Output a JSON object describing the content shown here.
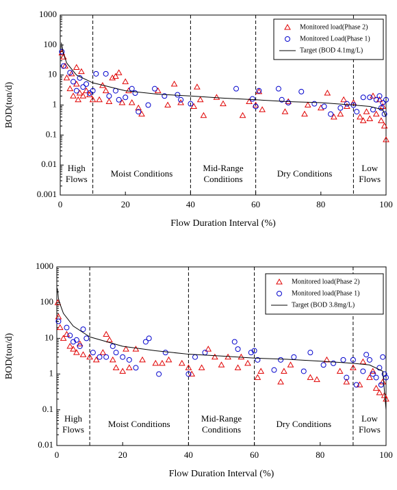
{
  "chart_data": [
    {
      "type": "scatter",
      "xlabel": "Flow Duration Interval (%)",
      "ylabel": "BOD(ton/d)",
      "xlim": [
        0,
        100
      ],
      "xticks": [
        0,
        20,
        40,
        60,
        80,
        100
      ],
      "ylim": [
        0.001,
        1000
      ],
      "yticks": [
        0.001,
        0.01,
        0.1,
        1,
        10,
        100,
        1000
      ],
      "log_scale": true,
      "legend": "upper right",
      "zone_boundaries": [
        10,
        40,
        60,
        90
      ],
      "zones": [
        {
          "label_lines": [
            "High",
            "Flows"
          ]
        },
        {
          "label_lines": [
            "Moist Conditions"
          ]
        },
        {
          "label_lines": [
            "Mid-Range",
            "Conditions"
          ]
        },
        {
          "label_lines": [
            "Dry Conditions"
          ]
        },
        {
          "label_lines": [
            "Low",
            "Flows"
          ]
        }
      ],
      "series": [
        {
          "name": "Monitored load(Phase 2)",
          "marker": "triangle",
          "color": "#e00000",
          "x": [
            0.5,
            1,
            1.5,
            2,
            3,
            3.5,
            4,
            5,
            5,
            5.5,
            6,
            6.5,
            7,
            8,
            9,
            10,
            12,
            13,
            14,
            15,
            16,
            17,
            18,
            19,
            20,
            21,
            22,
            24,
            25,
            30,
            33,
            35,
            37,
            41,
            42,
            43,
            44,
            48,
            50,
            56,
            58,
            60,
            61,
            62,
            69,
            70,
            75,
            76,
            80,
            82,
            84,
            86,
            87,
            88,
            90,
            92,
            93,
            94,
            95,
            96,
            97,
            98,
            98.5,
            99,
            99.5,
            100
          ],
          "values": [
            55,
            40,
            20,
            8,
            3.5,
            11,
            2,
            5,
            18,
            1.5,
            2.5,
            13,
            2,
            3,
            2.2,
            1.5,
            1.5,
            4.5,
            3,
            1.3,
            8,
            9,
            12,
            1.2,
            6,
            3,
            1.2,
            0.8,
            0.5,
            3,
            1,
            5,
            1.2,
            0.9,
            4,
            1.5,
            0.45,
            1.8,
            1.1,
            0.45,
            1.3,
            1,
            2.8,
            0.7,
            0.6,
            1.3,
            0.5,
            1,
            0.8,
            2.5,
            0.4,
            0.5,
            1.5,
            0.9,
            1.2,
            0.4,
            0.3,
            0.6,
            0.35,
            2,
            0.5,
            1.5,
            0.3,
            0.9,
            0.2,
            0.07
          ]
        },
        {
          "name": "Monitored Load(Phase 1)",
          "marker": "circle",
          "color": "#0000cc",
          "x": [
            0.5,
            1,
            3,
            4,
            5,
            6,
            7,
            8,
            9,
            10,
            11,
            14,
            15,
            17,
            18,
            20,
            22,
            23,
            24,
            27,
            29,
            32,
            36,
            37,
            40,
            54,
            59,
            60,
            61,
            67,
            68,
            70,
            74,
            78,
            81,
            83,
            86,
            88,
            90,
            91,
            93,
            95,
            96,
            97,
            98,
            98.5,
            99,
            99.5,
            100
          ],
          "values": [
            60,
            20,
            12,
            6,
            3,
            8,
            4,
            5,
            2.5,
            3,
            11,
            11,
            2,
            3,
            1.5,
            1.8,
            3.5,
            2.5,
            0.6,
            1,
            3.5,
            2,
            2.2,
            1.5,
            1.1,
            3.5,
            1.6,
            0.9,
            3,
            3.5,
            1.5,
            1.2,
            2.8,
            1.1,
            0.9,
            0.5,
            0.8,
            1.1,
            1,
            0.6,
            1.8,
            1.8,
            0.7,
            1.5,
            2,
            0.8,
            1.2,
            0.5,
            1.5
          ]
        },
        {
          "name": "Target (BOD 4.1mg/L)",
          "marker": "line",
          "color": "#000000",
          "x": [
            0.3,
            0.5,
            1,
            2,
            5,
            10,
            20,
            30,
            40,
            50,
            60,
            70,
            80,
            90,
            95,
            99,
            100
          ],
          "values": [
            120,
            100,
            50,
            25,
            10,
            5.5,
            3,
            2.3,
            2,
            1.7,
            1.5,
            1.3,
            1.2,
            1,
            0.9,
            0.7,
            0.4
          ]
        }
      ]
    },
    {
      "type": "scatter",
      "xlabel": "Flow Duration Interval (%)",
      "ylabel": "BOD(ton/d)",
      "xlim": [
        0,
        100
      ],
      "xticks": [
        0,
        20,
        40,
        60,
        80,
        100
      ],
      "ylim": [
        0.01,
        1000
      ],
      "yticks": [
        0.01,
        0.1,
        1,
        10,
        100,
        1000
      ],
      "log_scale": true,
      "legend": "upper right",
      "zone_boundaries": [
        10,
        40,
        60,
        90
      ],
      "zones": [
        {
          "label_lines": [
            "High",
            "Flows"
          ]
        },
        {
          "label_lines": [
            "Moist Conditions"
          ]
        },
        {
          "label_lines": [
            "Mid-Range",
            "Conditions"
          ]
        },
        {
          "label_lines": [
            "Dry Conditions"
          ]
        },
        {
          "label_lines": [
            "Low",
            "Flows"
          ]
        }
      ],
      "series": [
        {
          "name": "Monitored load(Phase 2)",
          "marker": "triangle",
          "color": "#e00000",
          "x": [
            0.3,
            0.5,
            1,
            2,
            3,
            4,
            5,
            6,
            7,
            8,
            10,
            12,
            14,
            15,
            16,
            17,
            18,
            20,
            21,
            22,
            24,
            26,
            30,
            32,
            34,
            38,
            40,
            41,
            44,
            46,
            48,
            50,
            52,
            55,
            56,
            58,
            61,
            62,
            68,
            69,
            71,
            77,
            79,
            82,
            86,
            88,
            90,
            92,
            93,
            95,
            96,
            97,
            98,
            99,
            99.5,
            100
          ],
          "values": [
            100,
            40,
            20,
            10,
            13,
            6,
            5,
            4,
            7,
            3.5,
            3,
            2.5,
            4,
            13,
            9,
            2.5,
            1.5,
            1.2,
            5,
            1.5,
            5,
            2.5,
            2,
            2,
            2.5,
            2,
            1.5,
            1,
            1.5,
            5,
            3,
            1.8,
            3,
            1.5,
            3,
            2,
            0.8,
            1.2,
            0.6,
            1.2,
            1.8,
            0.8,
            0.7,
            2.5,
            1.2,
            0.6,
            1.5,
            0.5,
            2.2,
            0.8,
            1.2,
            0.4,
            0.3,
            0.6,
            0.25,
            0.2
          ]
        },
        {
          "name": "Monitored load(Phase 1)",
          "marker": "circle",
          "color": "#0000cc",
          "x": [
            0.5,
            3,
            4,
            5,
            6,
            7,
            8,
            9,
            11,
            13,
            15,
            17,
            18,
            20,
            22,
            24,
            27,
            28,
            31,
            33,
            40,
            42,
            45,
            54,
            55,
            59,
            60,
            61,
            66,
            68,
            72,
            75,
            77,
            81,
            84,
            87,
            88,
            90,
            91,
            93,
            94,
            95,
            96,
            97,
            98,
            98.5,
            99,
            99.5,
            100
          ],
          "values": [
            30,
            20,
            12,
            8,
            9,
            6,
            18,
            10,
            4,
            3,
            3,
            6,
            4,
            3,
            2.5,
            1.5,
            8,
            10,
            1,
            4,
            1,
            3,
            4,
            8,
            5,
            4,
            4.5,
            2.5,
            1.3,
            2.5,
            3,
            1.2,
            4,
            1.8,
            2,
            2.5,
            0.8,
            2.5,
            0.5,
            1.2,
            3.5,
            2.5,
            1,
            0.8,
            1.5,
            0.5,
            3,
            1,
            0.8
          ]
        },
        {
          "name": "Target (BOD 3.8mg/L)",
          "marker": "line",
          "color": "#000000",
          "x": [
            0.2,
            0.5,
            1,
            2,
            5,
            10,
            20,
            30,
            40,
            50,
            60,
            70,
            80,
            90,
            95,
            99,
            100
          ],
          "values": [
            250,
            130,
            90,
            50,
            22,
            11,
            6,
            4.5,
            3.6,
            3.2,
            2.8,
            2.6,
            2.3,
            2,
            1.8,
            1.2,
            0.1
          ]
        }
      ]
    }
  ]
}
